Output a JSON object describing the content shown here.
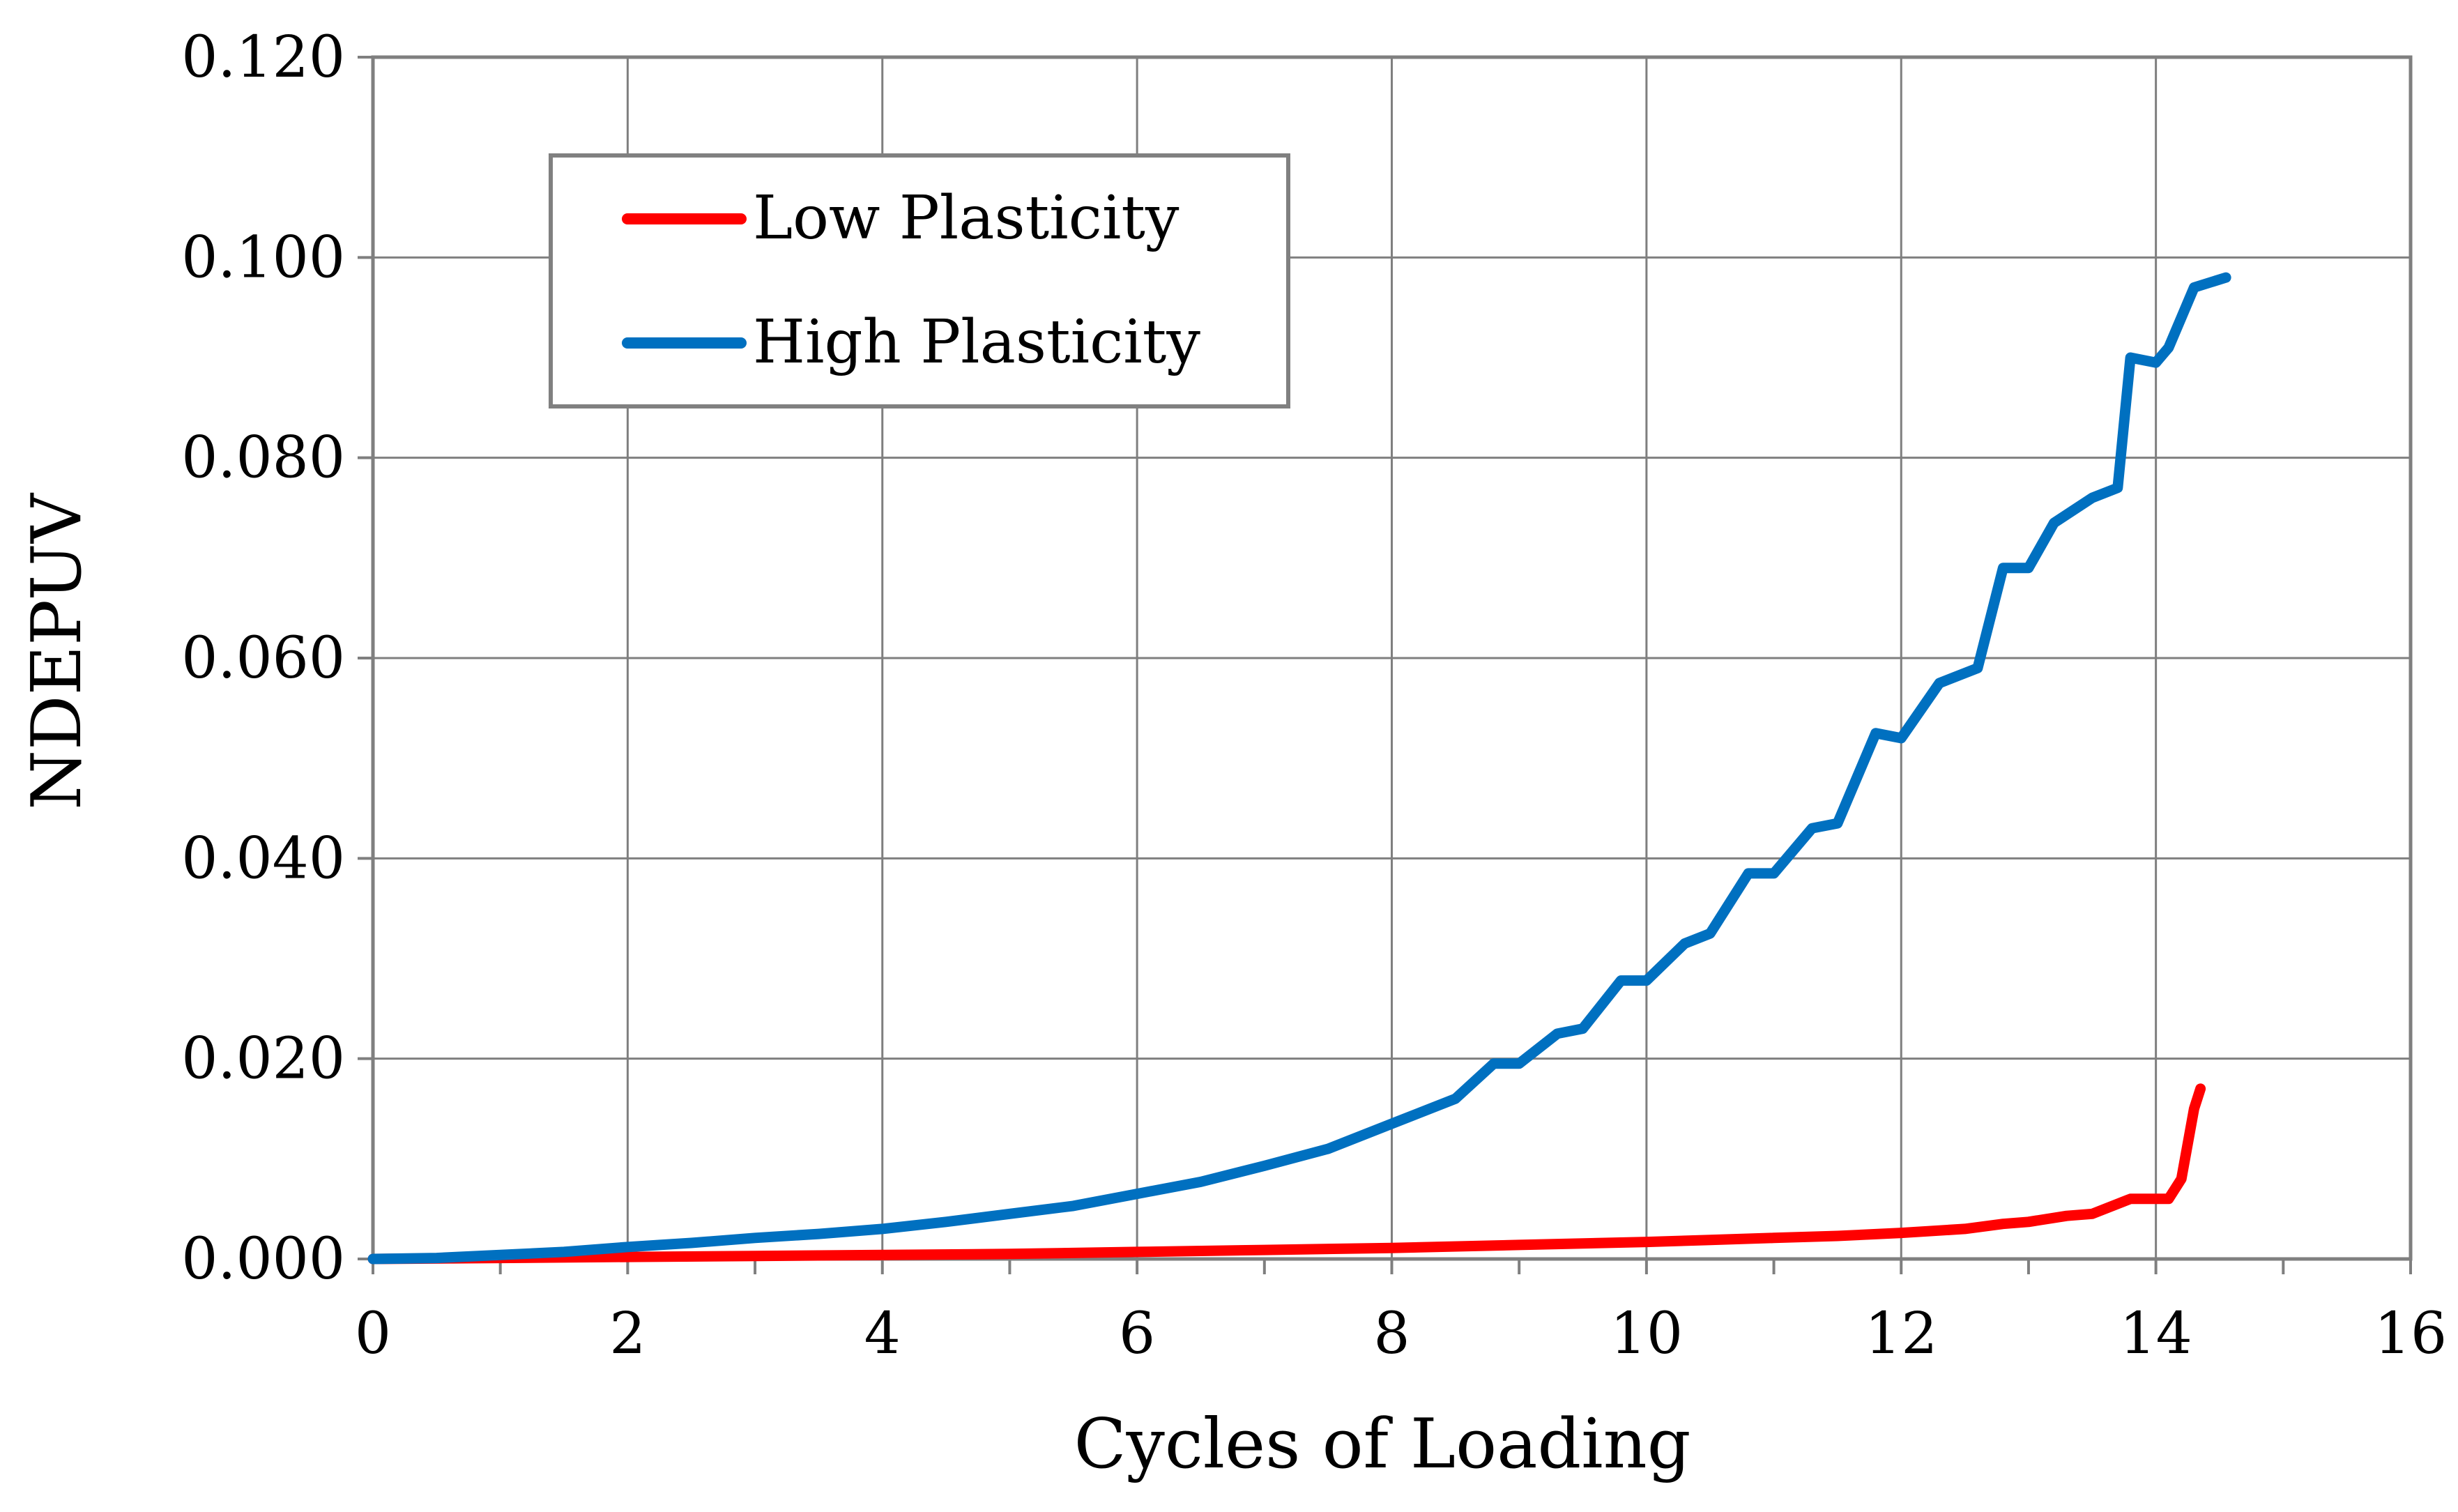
{
  "chart_data": {
    "type": "line",
    "title": "",
    "xlabel": "Cycles of Loading",
    "ylabel": "NDEPUV",
    "xlim": [
      0,
      16
    ],
    "ylim": [
      0,
      0.12
    ],
    "xticks": [
      "0",
      "2",
      "4",
      "6",
      "8",
      "10",
      "12",
      "14",
      "16"
    ],
    "xtick_values": [
      0,
      2,
      4,
      6,
      8,
      10,
      12,
      14,
      16
    ],
    "yticks": [
      "0.000",
      "0.020",
      "0.040",
      "0.060",
      "0.080",
      "0.100",
      "0.120"
    ],
    "ytick_values": [
      0,
      0.02,
      0.04,
      0.06,
      0.08,
      0.1,
      0.12
    ],
    "grid": true,
    "legend_position": "top-left",
    "series": [
      {
        "name": "Low Plasticity",
        "color": "#ff0000",
        "x": [
          0,
          1,
          2,
          3,
          4,
          5,
          6,
          7,
          8,
          9,
          10,
          10.5,
          11,
          11.5,
          12,
          12.5,
          12.8,
          13,
          13.3,
          13.5,
          13.8,
          14,
          14.1,
          14.2,
          14.3,
          14.35
        ],
        "y": [
          0,
          0.0001,
          0.0002,
          0.0003,
          0.0004,
          0.0005,
          0.0007,
          0.0009,
          0.0011,
          0.0014,
          0.0017,
          0.0019,
          0.0021,
          0.0023,
          0.0026,
          0.003,
          0.0035,
          0.0037,
          0.0043,
          0.0045,
          0.006,
          0.006,
          0.006,
          0.008,
          0.015,
          0.017
        ]
      },
      {
        "name": "High Plasticity",
        "color": "#0070c0",
        "x": [
          0,
          0.5,
          1,
          1.5,
          2,
          2.5,
          3,
          3.5,
          4,
          4.5,
          5,
          5.5,
          6,
          6.5,
          7,
          7.5,
          8,
          8.5,
          8.8,
          9,
          9.3,
          9.5,
          9.8,
          10,
          10.3,
          10.5,
          10.8,
          11,
          11.3,
          11.5,
          11.8,
          12,
          12.3,
          12.6,
          12.8,
          13,
          13.2,
          13.5,
          13.7,
          13.8,
          14,
          14.1,
          14.3,
          14.55
        ],
        "y": [
          0,
          0.0001,
          0.0004,
          0.0007,
          0.0012,
          0.0016,
          0.0021,
          0.0025,
          0.003,
          0.0037,
          0.0045,
          0.0053,
          0.0065,
          0.0077,
          0.0093,
          0.011,
          0.0135,
          0.016,
          0.0195,
          0.0195,
          0.0225,
          0.023,
          0.0278,
          0.0278,
          0.0315,
          0.0325,
          0.0385,
          0.0385,
          0.043,
          0.0435,
          0.0525,
          0.052,
          0.0575,
          0.059,
          0.069,
          0.069,
          0.0735,
          0.076,
          0.077,
          0.09,
          0.0895,
          0.091,
          0.097,
          0.098
        ]
      }
    ]
  }
}
